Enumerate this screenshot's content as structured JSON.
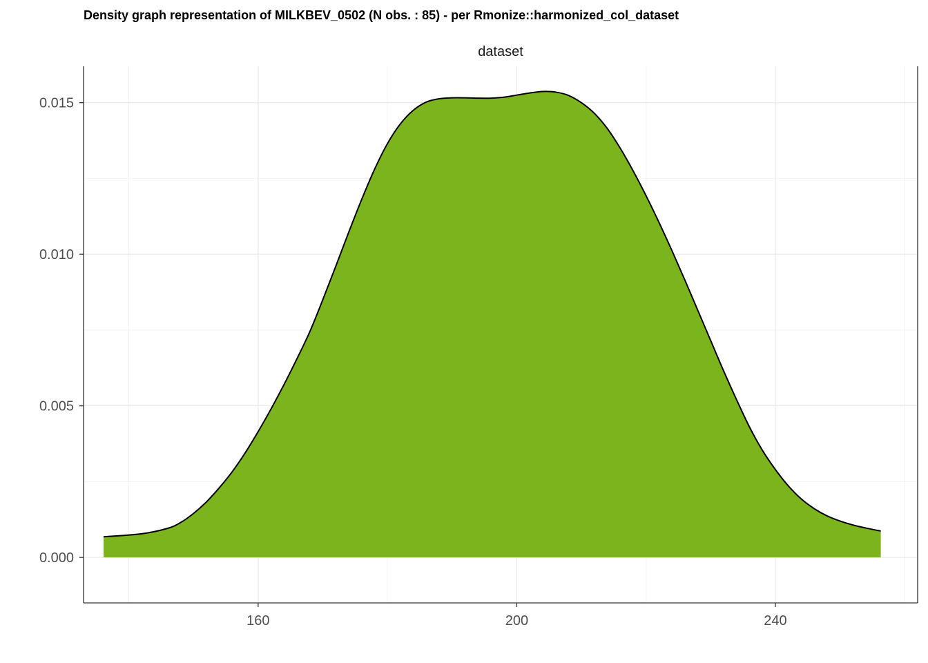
{
  "chart_data": {
    "type": "area",
    "title": "Density graph representation of MILKBEV_0502 (N obs. : 85) - per Rmonize::harmonized_col_dataset",
    "facet_label": "dataset",
    "xlabel": "",
    "ylabel": "",
    "xlim": [
      133,
      262
    ],
    "ylim": [
      -0.0015,
      0.0162
    ],
    "x_ticks": [
      160,
      200,
      240
    ],
    "x_tick_labels": [
      "160",
      "200",
      "240"
    ],
    "y_ticks": [
      0,
      0.005,
      0.01,
      0.015
    ],
    "y_tick_labels": [
      "0.000",
      "0.005",
      "0.010",
      "0.015"
    ],
    "grid": true,
    "fill_color": "#7cb41e",
    "line_color": "#000000",
    "series": [
      {
        "x": [
          136.1,
          142,
          146,
          148,
          150,
          152,
          154,
          156,
          158,
          160,
          162,
          164,
          166,
          168,
          170,
          172,
          174,
          176,
          178,
          180,
          182,
          184,
          186,
          188,
          190,
          192,
          194,
          196,
          198,
          200,
          202,
          204,
          206,
          208,
          210,
          212,
          214,
          216,
          218,
          220,
          222,
          224,
          226,
          228,
          230,
          232,
          234,
          236,
          238,
          240,
          242,
          244,
          246,
          248,
          250,
          252,
          254,
          256.3
        ],
        "values": [
          0.00068,
          0.00078,
          0.00096,
          0.00115,
          0.00145,
          0.00183,
          0.0023,
          0.00283,
          0.00345,
          0.00415,
          0.0049,
          0.0057,
          0.00655,
          0.00745,
          0.0085,
          0.0096,
          0.01072,
          0.0118,
          0.0128,
          0.01365,
          0.0143,
          0.01475,
          0.01502,
          0.01513,
          0.01516,
          0.01516,
          0.01515,
          0.01515,
          0.01518,
          0.01525,
          0.01532,
          0.01537,
          0.01535,
          0.01524,
          0.015,
          0.01465,
          0.01415,
          0.0135,
          0.01275,
          0.01193,
          0.01105,
          0.01012,
          0.00915,
          0.00815,
          0.00715,
          0.00615,
          0.0052,
          0.0043,
          0.00353,
          0.0029,
          0.00236,
          0.00193,
          0.00161,
          0.00137,
          0.0012,
          0.00107,
          0.00097,
          0.00087
        ]
      }
    ]
  }
}
